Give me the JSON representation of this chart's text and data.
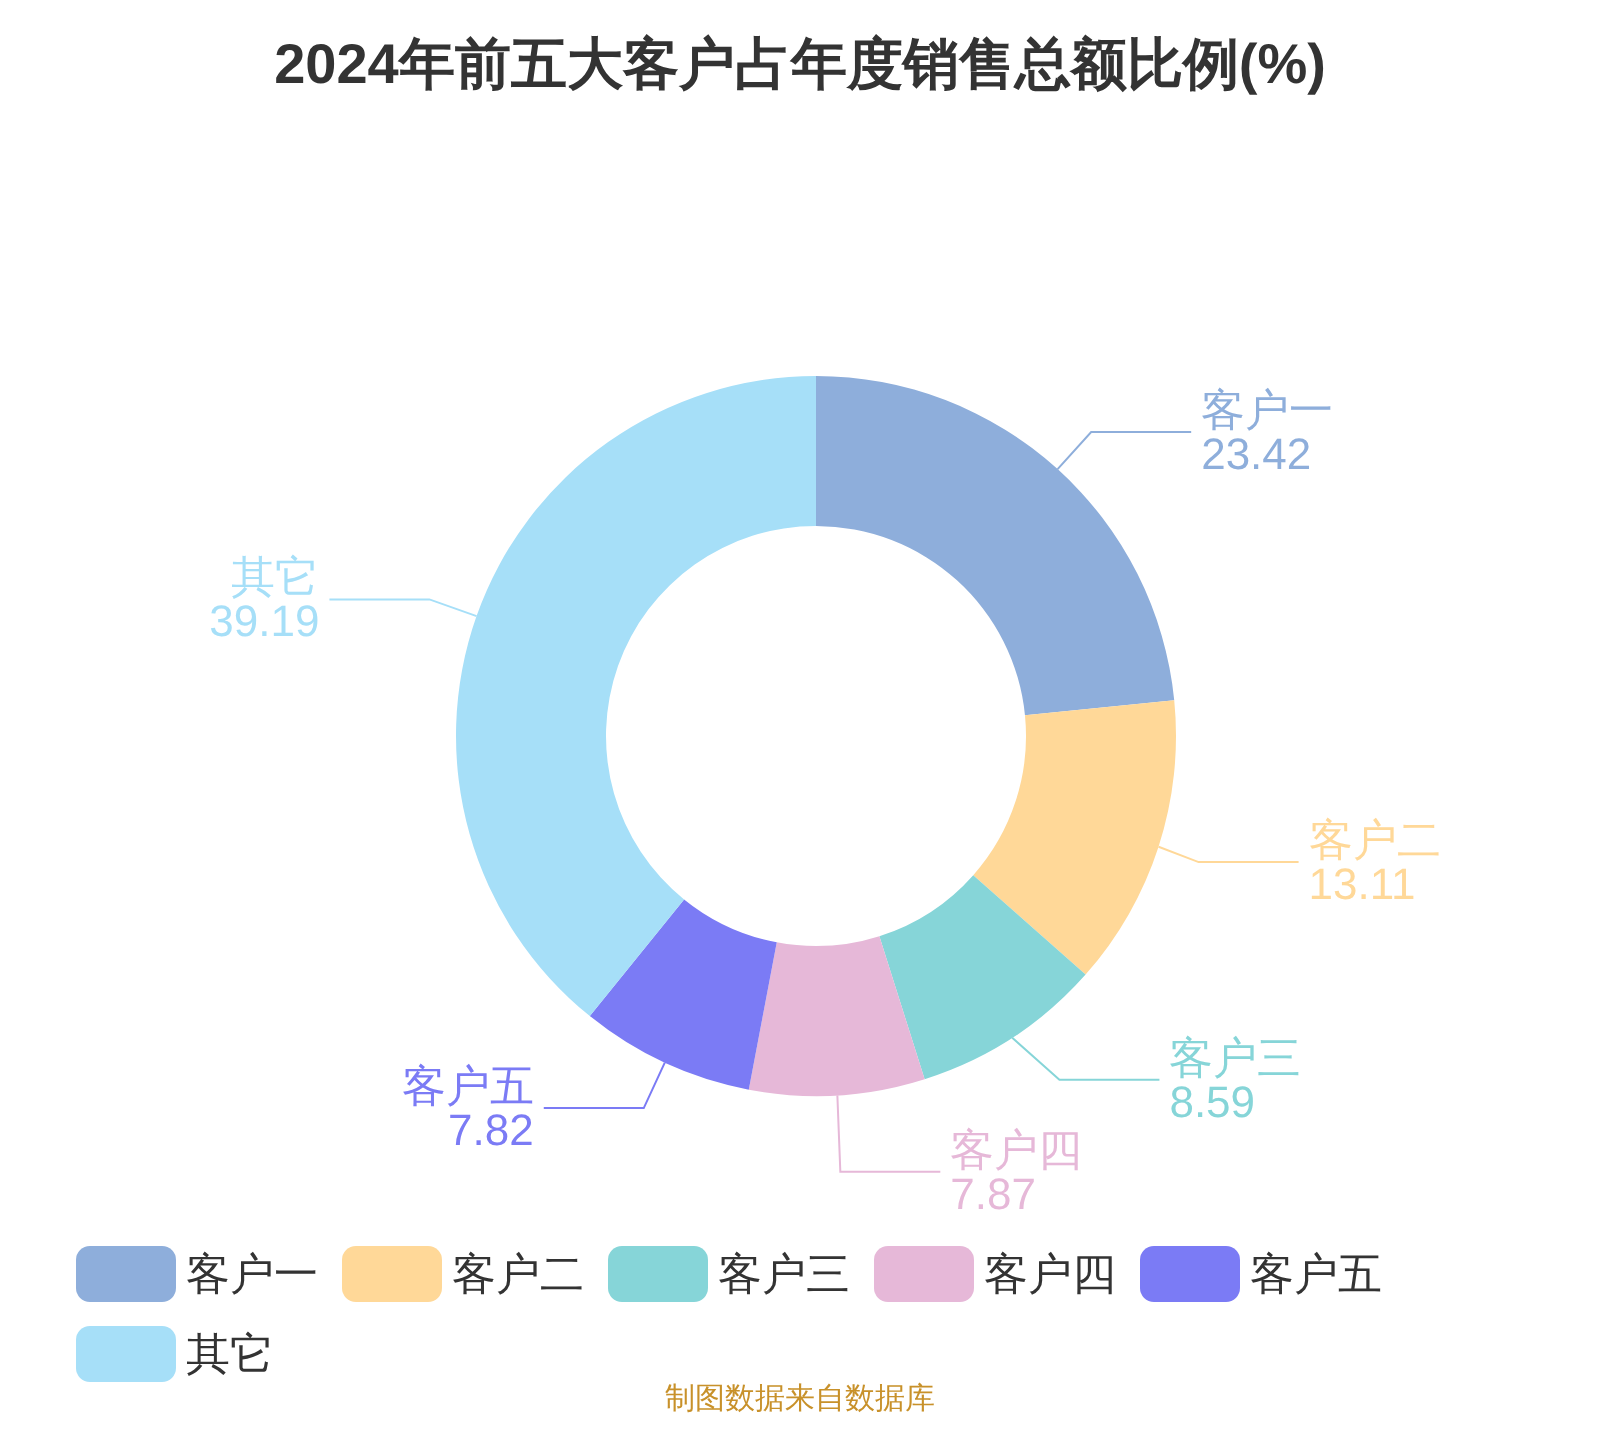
{
  "chart_data": {
    "type": "donut",
    "title": "2024年前五大客户占年度销售总额比例(%)",
    "categories": [
      "客户一",
      "客户二",
      "客户三",
      "客户四",
      "客户五",
      "其它"
    ],
    "values": [
      23.42,
      13.11,
      8.59,
      7.87,
      7.82,
      39.19
    ],
    "colors": [
      "#8eaedb",
      "#ffd898",
      "#86d5d8",
      "#e6b8d8",
      "#7b7bf5",
      "#a6dff8"
    ],
    "data_labels": true,
    "legend": "bottom",
    "annotations": [
      "制图数据来自数据库"
    ]
  }
}
